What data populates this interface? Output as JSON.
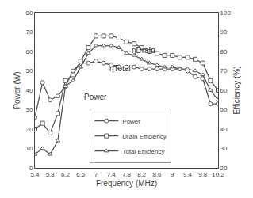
{
  "chart_data": {
    "type": "line",
    "x": [
      5.4,
      5.6,
      5.8,
      6.0,
      6.2,
      6.4,
      6.6,
      6.8,
      7.0,
      7.2,
      7.4,
      7.6,
      7.8,
      8.0,
      8.2,
      8.4,
      8.6,
      8.8,
      9.0,
      9.2,
      9.4,
      9.6,
      9.8,
      10.0,
      10.2
    ],
    "series": [
      {
        "name": "Power",
        "color": "#555555",
        "marker": "circle",
        "values": [
          26,
          44,
          35,
          37,
          42,
          50,
          54,
          54,
          55,
          54,
          53,
          52,
          52,
          52,
          51,
          51,
          51,
          51,
          51,
          51,
          50,
          47,
          46,
          33,
          33
        ]
      },
      {
        "name": "Drain Efficiency",
        "color": "#555555",
        "marker": "square",
        "axis": "y2",
        "values": [
          40,
          43,
          38,
          48,
          65,
          68,
          75,
          82,
          88,
          88,
          88,
          87,
          85,
          84,
          82,
          80,
          79,
          78,
          78,
          77,
          77,
          76,
          74,
          65,
          60
        ]
      },
      {
        "name": "Total Efficiency",
        "color": "#555555",
        "marker": "triangle-up",
        "axis": "y2",
        "values": [
          27,
          30,
          27,
          34,
          62,
          65,
          72,
          79,
          83,
          83,
          83,
          82,
          79,
          78,
          76,
          74,
          73,
          72,
          72,
          71,
          71,
          70,
          68,
          60,
          55
        ]
      }
    ],
    "xlabel": "Frequency (MHz)",
    "ylabel": "Power (W)",
    "y2label": "Efficiency (%)",
    "xlim": [
      5.4,
      10.2
    ],
    "xticks": [
      5.4,
      5.8,
      6.2,
      6.6,
      7,
      7.4,
      7.8,
      8.2,
      8.6,
      9,
      9.4,
      9.8,
      10.2
    ],
    "ylim": [
      0,
      80
    ],
    "yticks": [
      0,
      10,
      20,
      30,
      40,
      50,
      60,
      70,
      80
    ],
    "y2lim": [
      20,
      100
    ],
    "y2ticks": [
      20,
      30,
      40,
      50,
      60,
      70,
      80,
      90,
      100
    ],
    "annotations": [
      "ηDrain",
      "ηTotal",
      "Power"
    ],
    "legend": "lower left",
    "grid": false
  }
}
